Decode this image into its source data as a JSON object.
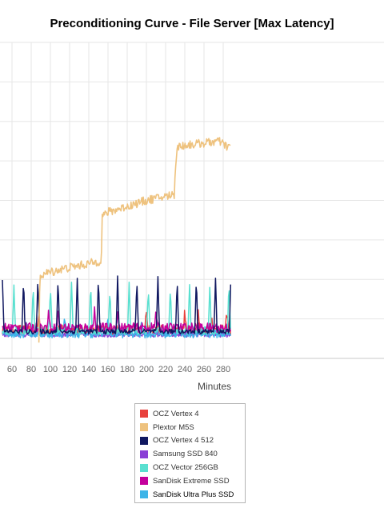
{
  "chart_data": {
    "type": "line",
    "title": "Preconditioning Curve - File Server [Max Latency]",
    "xlabel": "Minutes",
    "ylabel": "",
    "x_ticks": [
      60,
      80,
      100,
      120,
      140,
      160,
      180,
      200,
      220,
      240,
      260,
      280
    ],
    "xlim": [
      50,
      289
    ],
    "ylim": [
      0,
      8
    ],
    "grid": true,
    "legend_position": "bottom",
    "series": [
      {
        "name": "OCZ Vertex 4",
        "color": "#e8413c",
        "role": "noise",
        "x": [
          50,
          288
        ],
        "y": [
          0.72,
          0.72
        ],
        "amp": 0.13,
        "spikes": [
          88,
          200,
          240,
          254,
          268,
          284
        ]
      },
      {
        "name": "Plextor M5S",
        "color": "#eec27e",
        "role": "step",
        "x": [
          88,
          89,
          95,
          110,
          130,
          150,
          153,
          154,
          160,
          180,
          200,
          220,
          229,
          230,
          232,
          240,
          260,
          275,
          285,
          288
        ],
        "y": [
          0.4,
          2.1,
          2.15,
          2.25,
          2.35,
          2.45,
          2.5,
          3.6,
          3.7,
          3.85,
          4.0,
          4.1,
          4.15,
          4.75,
          5.35,
          5.4,
          5.45,
          5.5,
          5.35,
          5.4
        ]
      },
      {
        "name": "OCZ Vertex 4 512",
        "color": "#101860",
        "role": "spikes",
        "x": [
          50,
          288
        ],
        "y": [
          0.68,
          0.68
        ],
        "amp": 0.06,
        "spikes": [
          50,
          72,
          87,
          108,
          128,
          150,
          170,
          190,
          212,
          232,
          252,
          272,
          288
        ],
        "spike_height": 1.35
      },
      {
        "name": "Samsung SSD 840",
        "color": "#8a3fd6",
        "role": "noise",
        "x": [
          50,
          288
        ],
        "y": [
          0.6,
          0.6
        ],
        "amp": 0.06,
        "spikes": []
      },
      {
        "name": "OCZ Vector 256GB",
        "color": "#59e0d0",
        "role": "spikes",
        "x": [
          50,
          288
        ],
        "y": [
          0.7,
          0.7
        ],
        "amp": 0.1,
        "spikes": [
          62,
          82,
          100,
          122,
          142,
          162,
          182,
          202,
          225,
          245,
          266,
          286
        ],
        "spike_height": 1.15
      },
      {
        "name": "SanDisk Extreme SSD",
        "color": "#c4009c",
        "role": "noise",
        "x": [
          50,
          288
        ],
        "y": [
          0.78,
          0.78
        ],
        "amp": 0.12,
        "spikes": [
          98,
          108,
          146,
          170,
          210
        ]
      },
      {
        "name": "SanDisk Ultra Plus SSD",
        "color": "#3db4e8",
        "role": "noise",
        "x": [
          50,
          288
        ],
        "y": [
          0.62,
          0.62
        ],
        "amp": 0.1,
        "spikes": [
          75,
          115,
          160,
          195
        ]
      }
    ]
  }
}
